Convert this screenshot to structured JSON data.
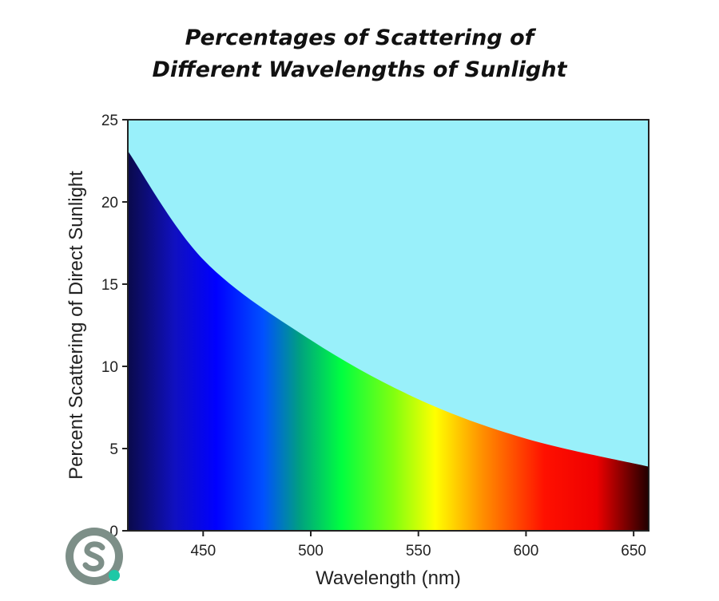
{
  "title_lines": [
    "Percentages of Scattering of",
    "Different Wavelengths of Sunlight"
  ],
  "chart_data": {
    "type": "area",
    "title": "Percentages of Scattering of Different Wavelengths of Sunlight",
    "xlabel": "Wavelength (nm)",
    "ylabel": "Percent Scattering of Direct Sunlight",
    "xlim": [
      415,
      657
    ],
    "ylim": [
      0,
      25
    ],
    "x_ticks": [
      450,
      500,
      550,
      600,
      650
    ],
    "y_ticks": [
      0,
      5,
      10,
      15,
      20,
      25
    ],
    "x": [
      415,
      450,
      500,
      550,
      600,
      657
    ],
    "y": [
      23.1,
      16.5,
      11.6,
      8.0,
      5.6,
      3.9
    ],
    "grid": false,
    "colors": {
      "background_above_curve": "#99f0fa",
      "spectrum": [
        "#0a0a4a",
        "#0000ff",
        "#0040ff",
        "#00ff40",
        "#80ff00",
        "#ffff00",
        "#ff8000",
        "#ff0000",
        "#200000"
      ]
    }
  },
  "logo": {
    "icon": "s-logo-icon",
    "colors": [
      "#7d8f88",
      "#1ec8a6"
    ]
  }
}
